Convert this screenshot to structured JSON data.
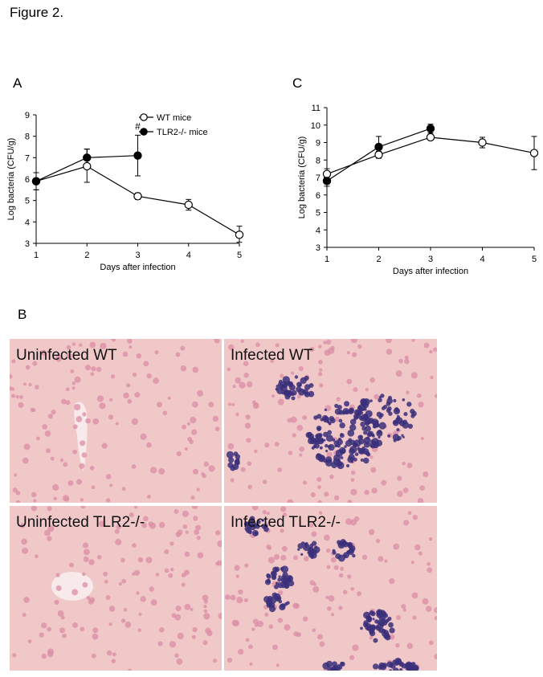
{
  "figure_title": "Figure 2.",
  "panel_labels": {
    "a": "A",
    "b": "B",
    "c": "C"
  },
  "colors": {
    "tissue": "#f1c8c8",
    "nuclei": "#d98ea6",
    "bacteria": "#3a2f7a",
    "vessel": "#f8eaea"
  },
  "micrographs": [
    {
      "label": "Uninfected WT",
      "infected": false
    },
    {
      "label": "Infected WT",
      "infected": true
    },
    {
      "label": "Uninfected TLR2-/-",
      "infected": false
    },
    {
      "label": "Infected TLR2-/-",
      "infected": true
    }
  ],
  "chart_data": [
    {
      "panel": "A",
      "type": "line",
      "xlabel": "Days after infection",
      "ylabel": "Log bacteria (CFU/g)",
      "xlim": [
        1,
        5
      ],
      "ylim": [
        3,
        9
      ],
      "x_ticks": [
        "1",
        "2",
        "3",
        "4",
        "5"
      ],
      "y_ticks": [
        "3",
        "4",
        "5",
        "6",
        "7",
        "8",
        "9"
      ],
      "legend_position": "top-right",
      "annotation": {
        "text": "#",
        "x": 3,
        "y": 8.45
      },
      "series": [
        {
          "name": "WT mice",
          "marker": "open-circle",
          "x": [
            1,
            2,
            3,
            4,
            5
          ],
          "y": [
            5.9,
            6.6,
            5.2,
            4.8,
            3.4
          ],
          "err_up": [
            0.4,
            0.8,
            0.15,
            0.25,
            0.4
          ],
          "err_down": [
            0.4,
            0.75,
            0.15,
            0.25,
            0.35
          ]
        },
        {
          "name": "TLR2-/- mice",
          "marker": "filled-circle",
          "x": [
            1,
            2,
            3
          ],
          "y": [
            5.9,
            7.0,
            7.1
          ],
          "err_up": [
            0.4,
            0.4,
            0.95
          ],
          "err_down": [
            0.4,
            0.4,
            0.95
          ]
        }
      ]
    },
    {
      "panel": "C",
      "type": "line",
      "xlabel": "Days after infection",
      "ylabel": "Log bacteria (CFU/g)",
      "xlim": [
        1,
        5
      ],
      "ylim": [
        3,
        11
      ],
      "x_ticks": [
        "1",
        "2",
        "3",
        "4",
        "5"
      ],
      "y_ticks": [
        "3",
        "4",
        "5",
        "6",
        "7",
        "8",
        "9",
        "10",
        "11"
      ],
      "series": [
        {
          "marker": "open-circle",
          "x": [
            1,
            2,
            3,
            4,
            5
          ],
          "y": [
            7.2,
            8.3,
            9.3,
            9.0,
            8.4
          ],
          "err_up": [
            0.3,
            0.2,
            0.1,
            0.3,
            0.95
          ],
          "err_down": [
            0.3,
            0.2,
            0.1,
            0.3,
            0.95
          ]
        },
        {
          "marker": "filled-circle",
          "x": [
            1,
            2,
            3
          ],
          "y": [
            6.8,
            8.75,
            9.8
          ],
          "err_up": [
            0.3,
            0.6,
            0.25
          ],
          "err_down": [
            0.3,
            0.6,
            0.25
          ]
        }
      ]
    }
  ]
}
